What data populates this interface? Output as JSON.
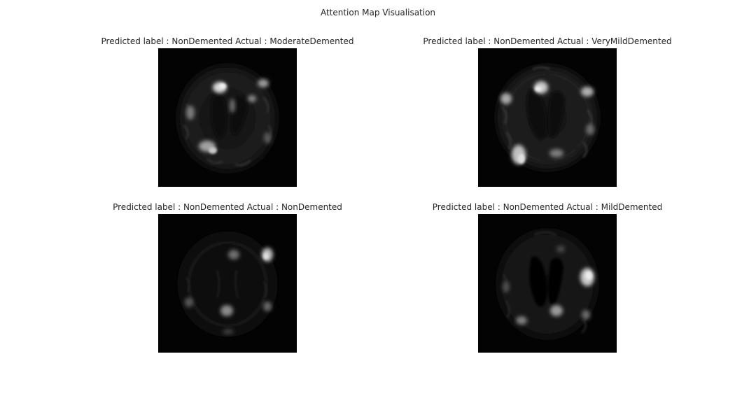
{
  "figure": {
    "title": "Attention Map Visualisation"
  },
  "panels": [
    {
      "title": "Predicted label : NonDemented Actual : ModerateDemented"
    },
    {
      "title": "Predicted label : NonDemented Actual : VeryMildDemented"
    },
    {
      "title": "Predicted label : NonDemented Actual : NonDemented"
    },
    {
      "title": "Predicted label : NonDemented Actual : MildDemented"
    }
  ],
  "colors": {
    "background": "#ffffff",
    "image_background": "#030303",
    "text": "#262626"
  }
}
